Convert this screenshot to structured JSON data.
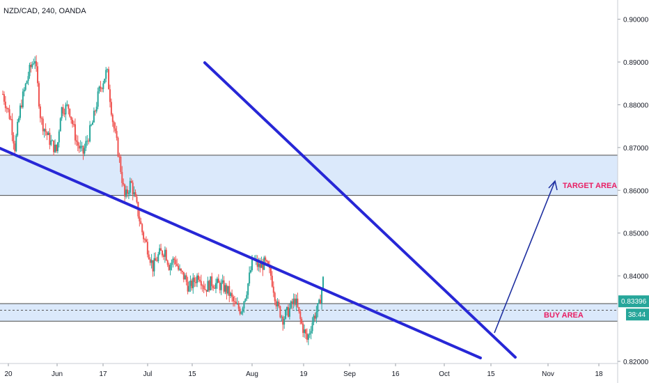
{
  "chart_data": {
    "type": "candlestick",
    "title": "NZD/CAD, 240, OANDA",
    "x_ticks": [
      "20",
      "Jun",
      "17",
      "Jul",
      "15",
      "Aug",
      "19",
      "Sep",
      "16",
      "Oct",
      "15",
      "Nov",
      "18"
    ],
    "y_ticks": [
      "0.90000",
      "0.89000",
      "0.88000",
      "0.87000",
      "0.86000",
      "0.85000",
      "0.84000",
      "0.82000"
    ],
    "ylim": [
      0.8195,
      0.9045
    ],
    "price_path": [
      [
        0,
        0.8825
      ],
      [
        0.04,
        0.8765
      ],
      [
        0.06,
        0.87
      ],
      [
        0.09,
        0.88
      ],
      [
        0.13,
        0.8875
      ],
      [
        0.16,
        0.8912
      ],
      [
        0.19,
        0.8765
      ],
      [
        0.23,
        0.872
      ],
      [
        0.27,
        0.869
      ],
      [
        0.29,
        0.879
      ],
      [
        0.33,
        0.8795
      ],
      [
        0.37,
        0.871
      ],
      [
        0.4,
        0.8685
      ],
      [
        0.45,
        0.876
      ],
      [
        0.48,
        0.883
      ],
      [
        0.52,
        0.888
      ],
      [
        0.55,
        0.876
      ],
      [
        0.58,
        0.868
      ],
      [
        0.61,
        0.858
      ],
      [
        0.64,
        0.862
      ],
      [
        0.67,
        0.856
      ],
      [
        0.7,
        0.8495
      ],
      [
        0.72,
        0.847
      ],
      [
        0.75,
        0.842
      ],
      [
        0.78,
        0.845
      ],
      [
        0.81,
        0.846
      ],
      [
        0.83,
        0.8425
      ],
      [
        0.86,
        0.844
      ],
      [
        0.88,
        0.841
      ],
      [
        0.91,
        0.8395
      ],
      [
        0.93,
        0.837
      ],
      [
        0.96,
        0.839
      ],
      [
        0.98,
        0.8405
      ],
      [
        1.01,
        0.837
      ],
      [
        1.04,
        0.8385
      ],
      [
        1.07,
        0.838
      ],
      [
        1.1,
        0.8375
      ],
      [
        1.13,
        0.836
      ],
      [
        1.16,
        0.833
      ],
      [
        1.19,
        0.832
      ],
      [
        1.22,
        0.837
      ],
      [
        1.25,
        0.844
      ],
      [
        1.28,
        0.842
      ],
      [
        1.31,
        0.843
      ],
      [
        1.34,
        0.84
      ],
      [
        1.37,
        0.833
      ],
      [
        1.4,
        0.83
      ],
      [
        1.43,
        0.832
      ],
      [
        1.46,
        0.8345
      ],
      [
        1.49,
        0.829
      ],
      [
        1.52,
        0.825
      ],
      [
        1.55,
        0.83
      ],
      [
        1.58,
        0.833
      ],
      [
        1.6,
        0.839
      ]
    ],
    "zones": [
      {
        "label": "TARGET AREA",
        "top": 0.8682,
        "bottom": 0.8588,
        "fill": "#dbe9fb"
      },
      {
        "label": "BUY AREA",
        "top": 0.8335,
        "bottom": 0.8294,
        "fill": "#dbe9fb"
      }
    ],
    "current_price": "0.83396",
    "countdown": "38:44",
    "colors": {
      "up": "#26a69a",
      "down": "#ef5350",
      "trendline": "#2727d6",
      "arrow": "#1e2fa0",
      "label": "#e91e63"
    }
  }
}
